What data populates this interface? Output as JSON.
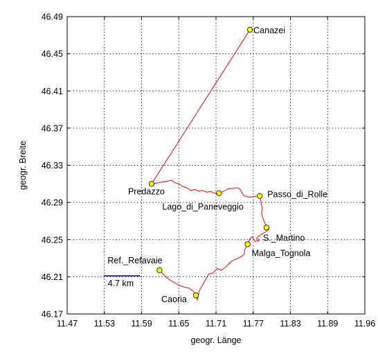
{
  "chart_data": {
    "type": "line",
    "xlabel": "geogr. Länge",
    "ylabel": "geogr. Breite",
    "xlim": [
      11.47,
      11.96
    ],
    "ylim": [
      46.17,
      46.49
    ],
    "xticks": [
      "11.47",
      "11.53",
      "11.59",
      "11.65",
      "11.71",
      "11.77",
      "11.83",
      "11.89",
      "11.96"
    ],
    "yticks": [
      "46.49",
      "46.45",
      "46.41",
      "46.37",
      "46.33",
      "46.29",
      "46.25",
      "46.21",
      "46.17"
    ],
    "grid": true,
    "track_color": "#ff0000",
    "waypoint_color": "#ffff00",
    "scale_bar": {
      "label": "4.7 km",
      "lon_start": 11.53,
      "lon_end": 11.59,
      "lat": 46.211
    },
    "waypoints": [
      {
        "name": "Canazei",
        "lon": 11.771,
        "lat": 46.476
      },
      {
        "name": "Predazzo",
        "lon": 11.609,
        "lat": 46.31
      },
      {
        "name": "Lago_di_Paneveggio",
        "lon": 11.72,
        "lat": 46.3
      },
      {
        "name": "Passo_di_Rolle",
        "lon": 11.787,
        "lat": 46.297
      },
      {
        "name": "S._Martino",
        "lon": 11.798,
        "lat": 46.263
      },
      {
        "name": "Malga_Tognola",
        "lon": 11.767,
        "lat": 46.245
      },
      {
        "name": "Ref._Refavaie",
        "lon": 11.622,
        "lat": 46.217
      },
      {
        "name": "Caoria",
        "lon": 11.682,
        "lat": 46.19
      }
    ],
    "track": [
      [
        11.771,
        46.476
      ],
      [
        11.609,
        46.31
      ],
      [
        11.618,
        46.311
      ],
      [
        11.627,
        46.312
      ],
      [
        11.636,
        46.313
      ],
      [
        11.642,
        46.314
      ],
      [
        11.648,
        46.311
      ],
      [
        11.655,
        46.31
      ],
      [
        11.66,
        46.307
      ],
      [
        11.667,
        46.306
      ],
      [
        11.673,
        46.303
      ],
      [
        11.68,
        46.304
      ],
      [
        11.687,
        46.302
      ],
      [
        11.693,
        46.303
      ],
      [
        11.7,
        46.301
      ],
      [
        11.706,
        46.302
      ],
      [
        11.712,
        46.3
      ],
      [
        11.72,
        46.3
      ],
      [
        11.728,
        46.302
      ],
      [
        11.736,
        46.305
      ],
      [
        11.744,
        46.305
      ],
      [
        11.75,
        46.306
      ],
      [
        11.755,
        46.304
      ],
      [
        11.758,
        46.3
      ],
      [
        11.762,
        46.297
      ],
      [
        11.768,
        46.296
      ],
      [
        11.776,
        46.296
      ],
      [
        11.782,
        46.297
      ],
      [
        11.787,
        46.297
      ],
      [
        11.789,
        46.291
      ],
      [
        11.791,
        46.284
      ],
      [
        11.79,
        46.278
      ],
      [
        11.793,
        46.272
      ],
      [
        11.796,
        46.267
      ],
      [
        11.798,
        46.263
      ],
      [
        11.802,
        46.261
      ],
      [
        11.796,
        46.258
      ],
      [
        11.788,
        46.255
      ],
      [
        11.782,
        46.252
      ],
      [
        11.786,
        46.249
      ],
      [
        11.779,
        46.248
      ],
      [
        11.775,
        46.253
      ],
      [
        11.771,
        46.251
      ],
      [
        11.767,
        46.245
      ],
      [
        11.763,
        46.24
      ],
      [
        11.761,
        46.234
      ],
      [
        11.755,
        46.231
      ],
      [
        11.748,
        46.229
      ],
      [
        11.741,
        46.227
      ],
      [
        11.735,
        46.223
      ],
      [
        11.73,
        46.22
      ],
      [
        11.724,
        46.217
      ],
      [
        11.717,
        46.219
      ],
      [
        11.71,
        46.214
      ],
      [
        11.703,
        46.213
      ],
      [
        11.697,
        46.206
      ],
      [
        11.693,
        46.201
      ],
      [
        11.688,
        46.196
      ],
      [
        11.686,
        46.19
      ],
      [
        11.684,
        46.185
      ],
      [
        11.682,
        46.19
      ],
      [
        11.677,
        46.195
      ],
      [
        11.67,
        46.198
      ],
      [
        11.662,
        46.199
      ],
      [
        11.654,
        46.201
      ],
      [
        11.646,
        46.204
      ],
      [
        11.638,
        46.207
      ],
      [
        11.631,
        46.211
      ],
      [
        11.625,
        46.215
      ],
      [
        11.622,
        46.217
      ]
    ]
  }
}
